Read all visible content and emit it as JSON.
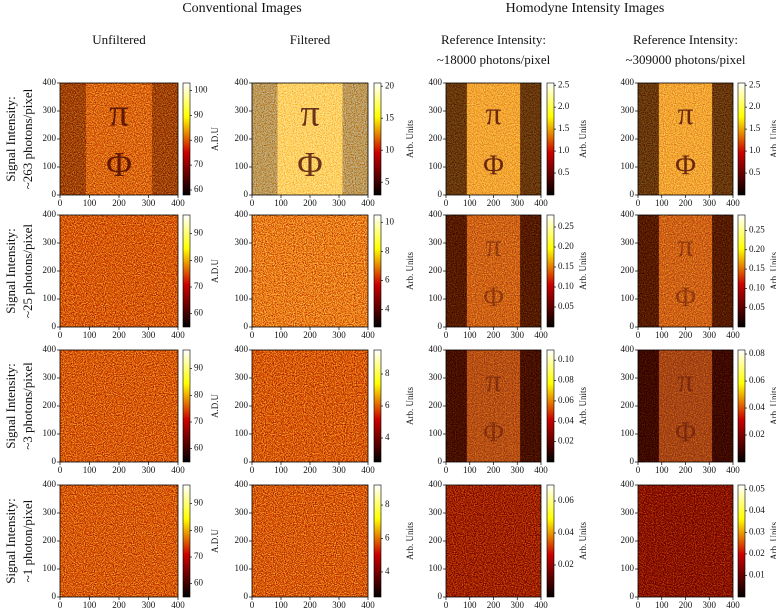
{
  "headers": {
    "conventional": "Conventional Images",
    "homodyne": "Homodyne Intensity Images"
  },
  "columns": [
    {
      "line1": "Unfiltered"
    },
    {
      "line1": "Filtered"
    },
    {
      "line1": "Reference Intensity:",
      "line2": "~18000 photons/pixel"
    },
    {
      "line1": "Reference Intensity:",
      "line2": "~309000 photons/pixel"
    }
  ],
  "rows": [
    {
      "line1": "Signal Intensity:",
      "line2": "~263 photons/pixel"
    },
    {
      "line1": "Signal Intensity:",
      "line2": "~25 photons/pixel"
    },
    {
      "line1": "Signal Intensity:",
      "line2": "~3 photons/pixel"
    },
    {
      "line1": "Signal Intensity:",
      "line2": "~1 photon/pixel"
    }
  ],
  "symbols": [
    "π",
    "Φ"
  ],
  "axis": {
    "lim": [
      0,
      400
    ],
    "ticks": [
      0,
      100,
      200,
      300,
      400
    ]
  },
  "colorbar_labels": {
    "adu": "A.D.U",
    "arb": "Arb. Units"
  },
  "panels": [
    [
      {
        "label": "adu",
        "lim": [
          58,
          103
        ],
        "ticks": [
          60,
          70,
          80,
          90,
          100
        ]
      },
      {
        "label": "arb",
        "lim": [
          3,
          20.5
        ],
        "ticks": [
          5,
          10,
          15,
          20
        ]
      },
      {
        "label": "arb",
        "lim": [
          0,
          2.55
        ],
        "ticks": [
          0.5,
          {
            "value": 1,
            "label": "1.0"
          },
          1.5,
          {
            "value": 2,
            "label": "2.0"
          },
          2.5
        ]
      },
      {
        "label": "arb",
        "lim": [
          0,
          2.55
        ],
        "ticks": [
          0.5,
          {
            "value": 1,
            "label": "1.0"
          },
          1.5,
          {
            "value": 2,
            "label": "2.0"
          },
          2.5
        ]
      }
    ],
    [
      {
        "label": "adu",
        "lim": [
          55,
          97
        ],
        "ticks": [
          60,
          70,
          80,
          90
        ]
      },
      {
        "label": "arb",
        "lim": [
          2.8,
          10.5
        ],
        "ticks": [
          4,
          6,
          8,
          10
        ]
      },
      {
        "label": "arb",
        "lim": [
          0,
          0.28
        ],
        "ticks": [
          0.05,
          {
            "value": 0.1,
            "label": "0.10"
          },
          0.15,
          {
            "value": 0.2,
            "label": "0.20"
          },
          0.25
        ]
      },
      {
        "label": "arb",
        "lim": [
          0,
          0.29
        ],
        "ticks": [
          0.05,
          {
            "value": 0.1,
            "label": "0.10"
          },
          0.15,
          {
            "value": 0.2,
            "label": "0.20"
          },
          0.25
        ]
      }
    ],
    [
      {
        "label": "adu",
        "lim": [
          55,
          97
        ],
        "ticks": [
          60,
          70,
          80,
          90
        ]
      },
      {
        "label": "arb",
        "lim": [
          2.5,
          9.5
        ],
        "ticks": [
          4,
          6,
          8
        ]
      },
      {
        "label": "arb",
        "lim": [
          0,
          0.11
        ],
        "ticks": [
          0.02,
          0.04,
          0.06,
          0.08,
          {
            "value": 0.1,
            "label": "0.10"
          }
        ]
      },
      {
        "label": "arb",
        "lim": [
          0,
          0.083
        ],
        "ticks": [
          0.02,
          0.04,
          0.06,
          0.08
        ]
      }
    ],
    [
      {
        "label": "adu",
        "lim": [
          55,
          97
        ],
        "ticks": [
          60,
          70,
          80,
          90
        ]
      },
      {
        "label": "arb",
        "lim": [
          2.5,
          9.2
        ],
        "ticks": [
          4,
          6,
          8
        ]
      },
      {
        "label": "arb",
        "lim": [
          0,
          0.07
        ],
        "ticks": [
          0.02,
          0.04,
          0.06
        ]
      },
      {
        "label": "arb",
        "lim": [
          0,
          0.052
        ],
        "ticks": [
          0.01,
          0.02,
          0.03,
          0.04,
          0.05
        ]
      }
    ]
  ]
}
